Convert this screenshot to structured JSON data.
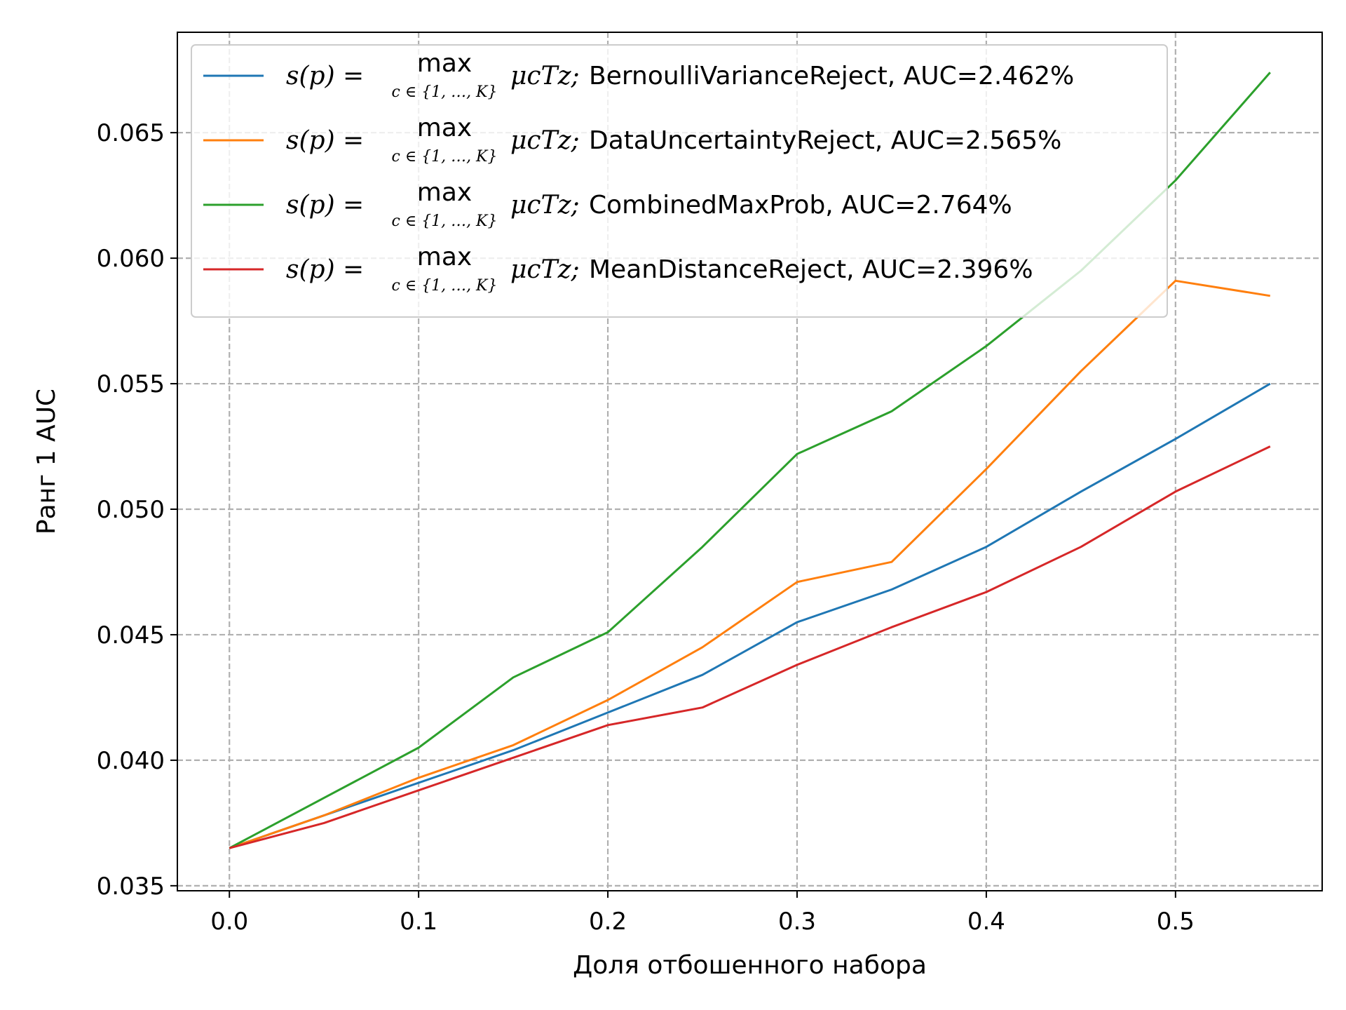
{
  "chart_data": {
    "type": "line",
    "xlabel": "Доля отбошенного набора",
    "ylabel": "Ранг 1 AUC",
    "xlim": [
      -0.0275,
      0.5775
    ],
    "ylim": [
      0.0348,
      0.069
    ],
    "xticks": [
      0.0,
      0.1,
      0.2,
      0.3,
      0.4,
      0.5
    ],
    "xtick_labels": [
      "0.0",
      "0.1",
      "0.2",
      "0.3",
      "0.4",
      "0.5"
    ],
    "yticks": [
      0.035,
      0.04,
      0.045,
      0.05,
      0.055,
      0.06,
      0.065
    ],
    "ytick_labels": [
      "0.035",
      "0.040",
      "0.045",
      "0.050",
      "0.055",
      "0.060",
      "0.065"
    ],
    "grid": true,
    "legend_position": "top-left",
    "x": [
      0.0,
      0.05,
      0.1,
      0.15,
      0.2,
      0.25,
      0.3,
      0.35,
      0.4,
      0.45,
      0.5,
      0.55
    ],
    "legend_prefix": {
      "lhs": "s(p) =",
      "op": "max",
      "sub": "c ∈ {1, …, K}",
      "rhs": "μcTz;"
    },
    "series": [
      {
        "name": "BernoulliVarianceReject, AUC=2.462%",
        "color": "#1f77b4",
        "values": [
          0.0365,
          0.0378,
          0.0391,
          0.0404,
          0.0419,
          0.0434,
          0.0455,
          0.0468,
          0.0485,
          0.0507,
          0.0528,
          0.055
        ]
      },
      {
        "name": "DataUncertaintyReject, AUC=2.565%",
        "color": "#ff7f0e",
        "values": [
          0.0365,
          0.0378,
          0.0393,
          0.0406,
          0.0424,
          0.0445,
          0.0471,
          0.0479,
          0.0516,
          0.0555,
          0.0591,
          0.0585
        ]
      },
      {
        "name": "CombinedMaxProb, AUC=2.764%",
        "color": "#2ca02c",
        "values": [
          0.0365,
          0.0385,
          0.0405,
          0.0433,
          0.0451,
          0.0485,
          0.0522,
          0.0539,
          0.0565,
          0.0595,
          0.0631,
          0.0674
        ]
      },
      {
        "name": "MeanDistanceReject, AUC=2.396%",
        "color": "#d62728",
        "values": [
          0.0365,
          0.0375,
          0.0388,
          0.0401,
          0.0414,
          0.0421,
          0.0438,
          0.0453,
          0.0467,
          0.0485,
          0.0507,
          0.0525
        ]
      }
    ]
  }
}
